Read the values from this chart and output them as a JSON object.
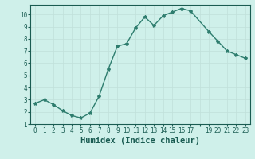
{
  "x": [
    0,
    1,
    2,
    3,
    4,
    5,
    6,
    7,
    8,
    9,
    10,
    11,
    12,
    13,
    14,
    15,
    16,
    17,
    19,
    20,
    21,
    22,
    23
  ],
  "y": [
    2.7,
    3.0,
    2.6,
    2.1,
    1.7,
    1.5,
    1.9,
    3.3,
    5.5,
    7.4,
    7.6,
    8.9,
    9.8,
    9.1,
    9.9,
    10.2,
    10.5,
    10.3,
    8.6,
    7.8,
    7.0,
    6.7,
    6.4
  ],
  "line_color": "#2e7d6e",
  "marker": "*",
  "marker_color": "#2e7d6e",
  "bg_color": "#cff0ea",
  "xlabel": "Humidex (Indice chaleur)",
  "ylim": [
    1,
    10.8
  ],
  "xlim": [
    -0.5,
    23.5
  ],
  "yticks": [
    1,
    2,
    3,
    4,
    5,
    6,
    7,
    8,
    9,
    10
  ],
  "xtick_positions": [
    0,
    1,
    2,
    3,
    4,
    5,
    6,
    7,
    8,
    9,
    10,
    11,
    12,
    13,
    14,
    15,
    16,
    17,
    18,
    19,
    20,
    21,
    22,
    23
  ],
  "xtick_labels": [
    "0",
    "1",
    "2",
    "3",
    "4",
    "5",
    "6",
    "7",
    "8",
    "9",
    "10",
    "11",
    "12",
    "13",
    "14",
    "15",
    "16",
    "17",
    "",
    "19",
    "20",
    "21",
    "22",
    "23"
  ],
  "font_color": "#1a5c52",
  "tick_fontsize": 5.5,
  "label_fontsize": 7.5,
  "linewidth": 1.0,
  "markersize": 3.0,
  "grid_color": "#c0e0da",
  "grid_linewidth": 0.5
}
